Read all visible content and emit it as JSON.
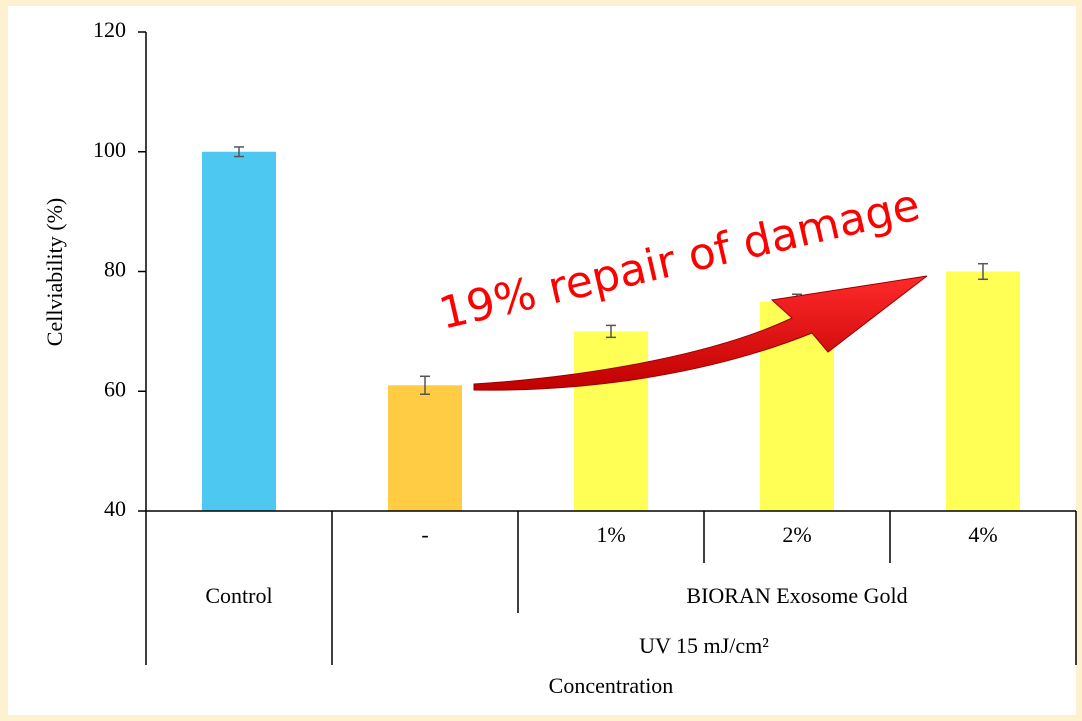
{
  "chart_data": {
    "type": "bar",
    "y_label": "Cellviability (%)",
    "x_label": "Concentration",
    "categories": [
      "Control",
      "-",
      "1%",
      "2%",
      "4%"
    ],
    "groups": [
      {
        "label": "BIORAN Exosome Gold",
        "from": 2,
        "to": 4
      },
      {
        "label": "UV 15 mJ/cm²",
        "from": 1,
        "to": 4
      }
    ],
    "values": [
      100,
      61,
      70,
      75,
      80
    ],
    "errors": [
      0.8,
      1.5,
      1.0,
      1.2,
      1.3
    ],
    "colors": [
      "#4dc8f0",
      "#ffcc44",
      "#ffff55",
      "#ffff55",
      "#ffff55"
    ],
    "ylim": [
      40,
      120
    ],
    "yticks": [
      40,
      60,
      80,
      100,
      120
    ],
    "annotation": "19% repair of damage"
  }
}
